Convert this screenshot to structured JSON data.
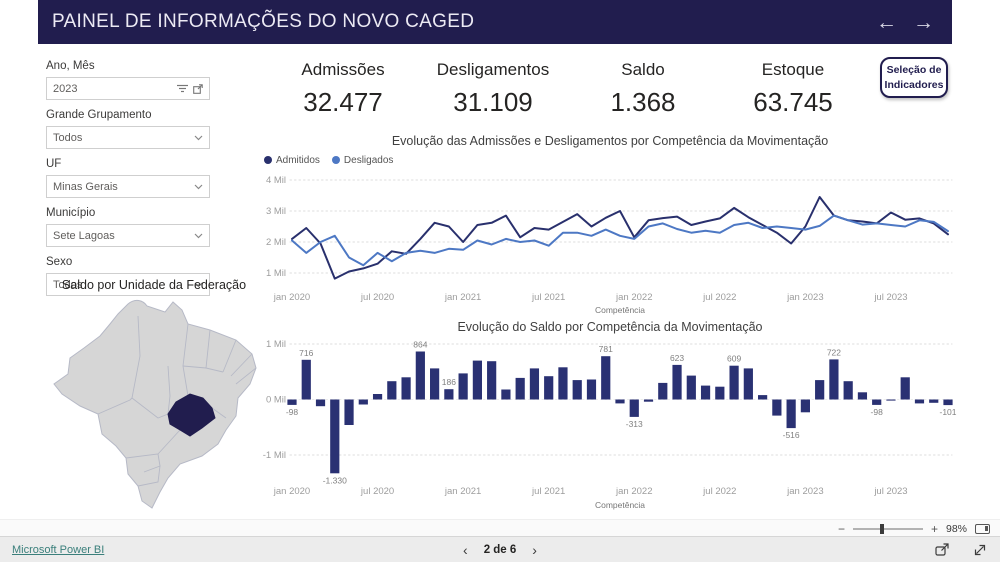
{
  "header": {
    "title": "PAINEL DE INFORMAÇÕES DO NOVO CAGED",
    "back_arrow": "←",
    "forward_arrow": "→"
  },
  "filters": [
    {
      "label": "Ano, Mês",
      "value": "2023",
      "type": "search-input"
    },
    {
      "label": "Grande Grupamento",
      "value": "Todos",
      "type": "dropdown"
    },
    {
      "label": "UF",
      "value": "Minas Gerais",
      "type": "dropdown"
    },
    {
      "label": "Município",
      "value": "Sete Lagoas",
      "type": "dropdown"
    },
    {
      "label": "Sexo",
      "value": "Todos",
      "type": "dropdown"
    }
  ],
  "kpis": [
    {
      "label": "Admissões",
      "value": "32.477"
    },
    {
      "label": "Desligamentos",
      "value": "31.109"
    },
    {
      "label": "Saldo",
      "value": "1.368"
    },
    {
      "label": "Estoque",
      "value": "63.745"
    }
  ],
  "indicator_button": {
    "line1": "Seleção de",
    "line2": "Indicadores"
  },
  "map": {
    "title": "Saldo por Unidade da Federação",
    "highlighted_state": "Minas Gerais",
    "state_fill": "#d6d6d6",
    "state_border": "#b6b9c6",
    "highlight_fill": "#211d4e"
  },
  "chart_data": [
    {
      "id": "admissoes-desligamentos",
      "type": "line",
      "title": "Evolução das Admissões e Desligamentos por Competência da Movimentação",
      "xlabel": "Competência",
      "x_range": "jan 2020 – nov 2023",
      "x_tick_labels": [
        "jan 2020",
        "jul 2020",
        "jan 2021",
        "jul 2021",
        "jan 2022",
        "jul 2022",
        "jan 2023",
        "jul 2023"
      ],
      "x_tick_indices": [
        0,
        6,
        12,
        18,
        24,
        30,
        36,
        42
      ],
      "y_tick_labels": [
        "4 Mil",
        "3 Mil",
        "2 Mil",
        "1 Mil"
      ],
      "y_tick_values_mil": [
        4,
        3,
        2,
        1
      ],
      "unit": "Mil",
      "series": [
        {
          "name": "Admitidos",
          "color": "#29306d",
          "values_mil": [
            2.1,
            2.45,
            1.95,
            0.82,
            1.05,
            1.15,
            1.3,
            1.7,
            1.62,
            2.1,
            2.62,
            2.5,
            2.0,
            2.55,
            2.62,
            2.85,
            2.15,
            2.45,
            2.4,
            2.65,
            2.9,
            2.5,
            2.78,
            3.0,
            2.15,
            2.7,
            2.77,
            2.82,
            2.55,
            2.66,
            2.76,
            3.1,
            2.8,
            2.55,
            2.3,
            1.95,
            2.5,
            3.45,
            2.85,
            2.7,
            2.66,
            2.6,
            2.95,
            2.72,
            2.76,
            2.6,
            2.25
          ]
        },
        {
          "name": "Desligados",
          "color": "#4d78c4",
          "values_mil": [
            2.05,
            1.65,
            2.0,
            2.2,
            1.5,
            1.25,
            1.65,
            1.38,
            1.65,
            1.72,
            1.65,
            1.78,
            1.75,
            2.05,
            1.92,
            2.1,
            2.0,
            2.05,
            1.88,
            2.3,
            2.3,
            2.2,
            2.4,
            2.2,
            2.1,
            2.5,
            2.6,
            2.42,
            2.3,
            2.36,
            2.3,
            2.55,
            2.62,
            2.45,
            2.5,
            2.45,
            2.4,
            2.52,
            2.85,
            2.7,
            2.56,
            2.6,
            2.55,
            2.5,
            2.7,
            2.65,
            2.35
          ]
        }
      ]
    },
    {
      "id": "saldo",
      "type": "bar",
      "title": "Evolução do Saldo por Competência da Movimentação",
      "xlabel": "Competência",
      "x_range": "jan 2020 – nov 2023",
      "x_tick_labels": [
        "jan 2020",
        "jul 2020",
        "jan 2021",
        "jul 2021",
        "jan 2022",
        "jul 2022",
        "jan 2023",
        "jul 2023"
      ],
      "x_tick_indices": [
        0,
        6,
        12,
        18,
        24,
        30,
        36,
        42
      ],
      "y_tick_labels": [
        "1 Mil",
        "0 Mil",
        "-1 Mil"
      ],
      "y_tick_values": [
        1000,
        0,
        -1000
      ],
      "bar_color": "#2a3173",
      "values": [
        -98,
        716,
        -120,
        -1330,
        -460,
        -90,
        100,
        330,
        400,
        864,
        560,
        186,
        470,
        700,
        690,
        180,
        390,
        560,
        420,
        580,
        350,
        360,
        781,
        -70,
        -313,
        -40,
        300,
        623,
        430,
        250,
        230,
        609,
        560,
        80,
        -290,
        -516,
        -230,
        350,
        722,
        330,
        130,
        -98,
        -20,
        400,
        -70,
        -60,
        -101
      ],
      "labeled_points": [
        {
          "index": 0,
          "text": "-98"
        },
        {
          "index": 1,
          "text": "716"
        },
        {
          "index": 3,
          "text": "-1.330"
        },
        {
          "index": 9,
          "text": "864"
        },
        {
          "index": 11,
          "text": "186"
        },
        {
          "index": 22,
          "text": "781"
        },
        {
          "index": 24,
          "text": "-313"
        },
        {
          "index": 27,
          "text": "623"
        },
        {
          "index": 31,
          "text": "609"
        },
        {
          "index": 35,
          "text": "-516"
        },
        {
          "index": 38,
          "text": "722"
        },
        {
          "index": 41,
          "text": "-98"
        },
        {
          "index": 46,
          "text": "-101"
        }
      ]
    }
  ],
  "footer": {
    "brand": "Microsoft Power BI",
    "page_label": "2 de 6",
    "prev_chevron": "‹",
    "next_chevron": "›",
    "zoom_minus": "−",
    "zoom_plus": "+",
    "zoom_percent": "98%"
  },
  "palette": {
    "navy": "#211d4e",
    "admitidos": "#29306d",
    "desligados": "#4d78c4",
    "bar": "#2a3173"
  }
}
